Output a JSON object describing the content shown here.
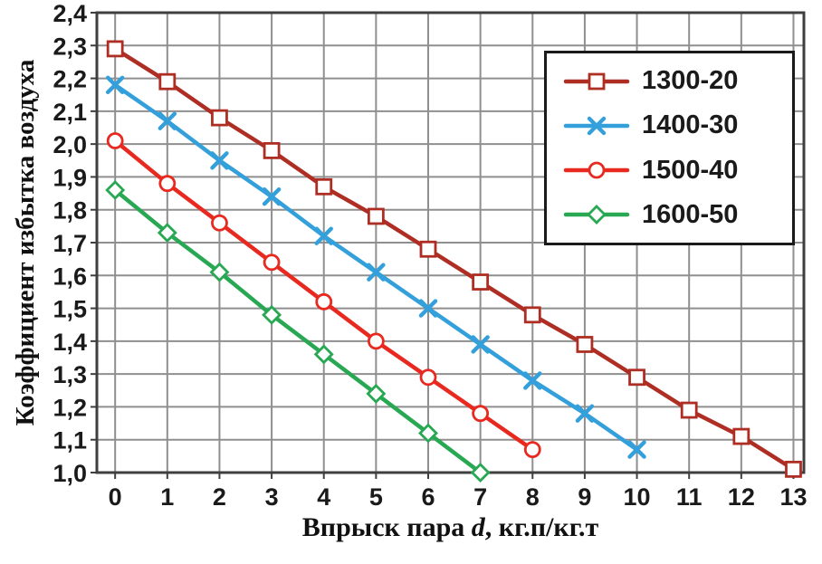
{
  "chart_data": {
    "type": "line",
    "title": "",
    "xlabel_prefix": "Впрыск пара ",
    "xlabel_var": "d",
    "xlabel_suffix": ", кг.п/кг.т",
    "ylabel": "Коэффициент избытка воздуха",
    "xlim": [
      -0.35,
      13.2
    ],
    "ylim": [
      1.0,
      2.4
    ],
    "grid": true,
    "legend_position": "top-right",
    "x_ticks": [
      0,
      1,
      2,
      3,
      4,
      5,
      6,
      7,
      8,
      9,
      10,
      11,
      12,
      13
    ],
    "y_tick_values": [
      2.4,
      2.3,
      2.2,
      2.1,
      2.0,
      1.9,
      1.8,
      1.7,
      1.6,
      1.5,
      1.4,
      1.3,
      1.2,
      1.1,
      1.0
    ],
    "y_tick_labels": [
      "2,4",
      "2,3",
      "2,2",
      "2,1",
      "2,0",
      "1,9",
      "1,8",
      "1,7",
      "1,6",
      "1,5",
      "1,4",
      "1,3",
      "1,2",
      "1,1",
      "1,0"
    ],
    "colors": {
      "grid": "#8F8F8F",
      "border": "#3F3F3F",
      "text": "#1A1A1A",
      "background": "#FFFFFF"
    },
    "series": [
      {
        "name": "1300-20",
        "color": "#AE2E24",
        "marker": "square",
        "x": [
          0,
          1,
          2,
          3,
          4,
          5,
          6,
          7,
          8,
          9,
          10,
          11,
          12,
          13
        ],
        "values": [
          2.29,
          2.19,
          2.08,
          1.98,
          1.87,
          1.78,
          1.68,
          1.58,
          1.48,
          1.39,
          1.29,
          1.19,
          1.11,
          1.01
        ]
      },
      {
        "name": "1400-30",
        "color": "#33A0DC",
        "marker": "x",
        "x": [
          0,
          1,
          2,
          3,
          4,
          5,
          6,
          7,
          8,
          9,
          10
        ],
        "values": [
          2.18,
          2.07,
          1.95,
          1.84,
          1.72,
          1.61,
          1.5,
          1.39,
          1.28,
          1.18,
          1.07
        ]
      },
      {
        "name": "1500-40",
        "color": "#E8291F",
        "marker": "circle",
        "x": [
          0,
          1,
          2,
          3,
          4,
          5,
          6,
          7,
          8
        ],
        "values": [
          2.01,
          1.88,
          1.76,
          1.64,
          1.52,
          1.4,
          1.29,
          1.18,
          1.07
        ]
      },
      {
        "name": "1600-50",
        "color": "#28A853",
        "marker": "diamond",
        "x": [
          0,
          1,
          2,
          3,
          4,
          5,
          6,
          7
        ],
        "values": [
          1.86,
          1.73,
          1.61,
          1.48,
          1.36,
          1.24,
          1.12,
          1.0
        ]
      }
    ]
  }
}
